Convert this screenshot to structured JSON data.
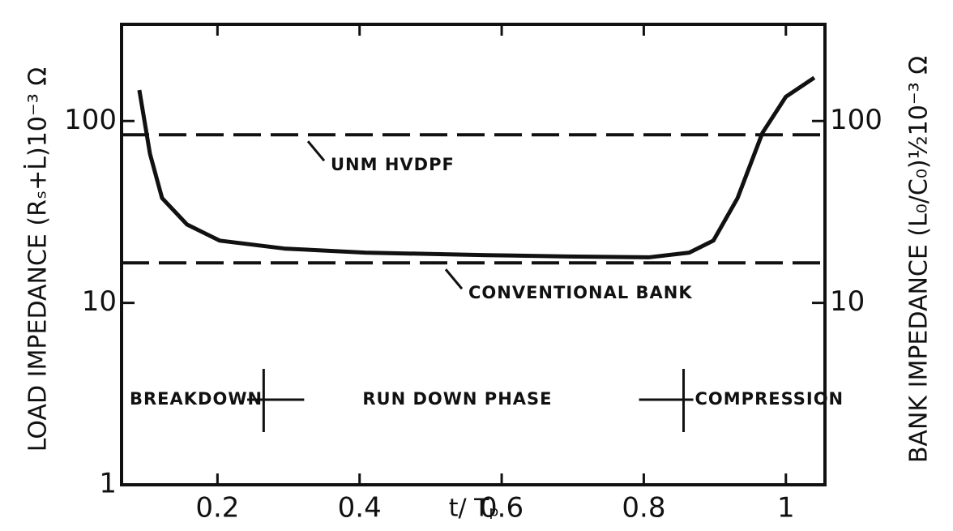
{
  "chart_data": {
    "type": "line",
    "xlabel": "t/ Tₚ",
    "ylabel": "LOAD IMPEDANCE (Rₛ+L̇)10⁻³ Ω",
    "y2label": "BANK IMPEDANCE (L₀/C₀)½10⁻³ Ω",
    "log_y": true,
    "xlim": [
      0.065,
      1.055
    ],
    "ylim": [
      1,
      340
    ],
    "xticks": [
      0.2,
      0.4,
      0.6,
      0.8,
      1
    ],
    "yticks": [
      1,
      10,
      100
    ],
    "y2ticks": [
      10,
      100
    ],
    "series": [
      {
        "color": "#111",
        "x": [
          0.09,
          0.105,
          0.122,
          0.157,
          0.203,
          0.294,
          0.408,
          0.579,
          0.693,
          0.807,
          0.864,
          0.898,
          0.932,
          0.967,
          1.0,
          1.04
        ],
        "values": [
          148,
          66,
          37.7,
          27,
          22,
          19.9,
          18.9,
          18.3,
          18,
          17.8,
          18.9,
          22,
          37.7,
          86,
          136,
          173
        ]
      }
    ],
    "hlines": [
      {
        "label": "UNM HVDPF",
        "value": 84
      },
      {
        "label": "CONVENTIONAL BANK",
        "value": 16.6
      }
    ],
    "phases": {
      "labels": [
        "BREAKDOWN",
        "RUN DOWN PHASE",
        "COMPRESSION"
      ],
      "boundaries": [
        0.265,
        0.856
      ]
    }
  }
}
